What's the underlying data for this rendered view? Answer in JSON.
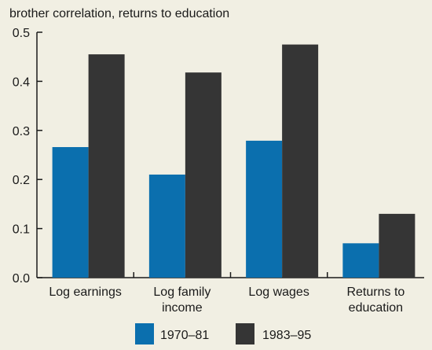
{
  "chart_data": {
    "type": "bar",
    "title": "brother correlation, returns to education",
    "categories": [
      [
        "Log earnings"
      ],
      [
        "Log family",
        "income"
      ],
      [
        "Log wages"
      ],
      [
        "Returns to",
        "education"
      ]
    ],
    "series": [
      {
        "name": "1970–81",
        "values": [
          0.266,
          0.21,
          0.279,
          0.07
        ]
      },
      {
        "name": "1983–95",
        "values": [
          0.455,
          0.418,
          0.475,
          0.13
        ]
      }
    ],
    "ylim": [
      0,
      0.5
    ],
    "yticks": [
      0.0,
      0.1,
      0.2,
      0.3,
      0.4,
      0.5
    ],
    "ytick_labels": [
      "0.0",
      "0.1",
      "0.2",
      "0.3",
      "0.4",
      "0.5"
    ],
    "grid": false,
    "legend_position": "bottom-center",
    "colors": [
      "#0b6fae",
      "#353535"
    ],
    "background": "#f1efe3"
  }
}
